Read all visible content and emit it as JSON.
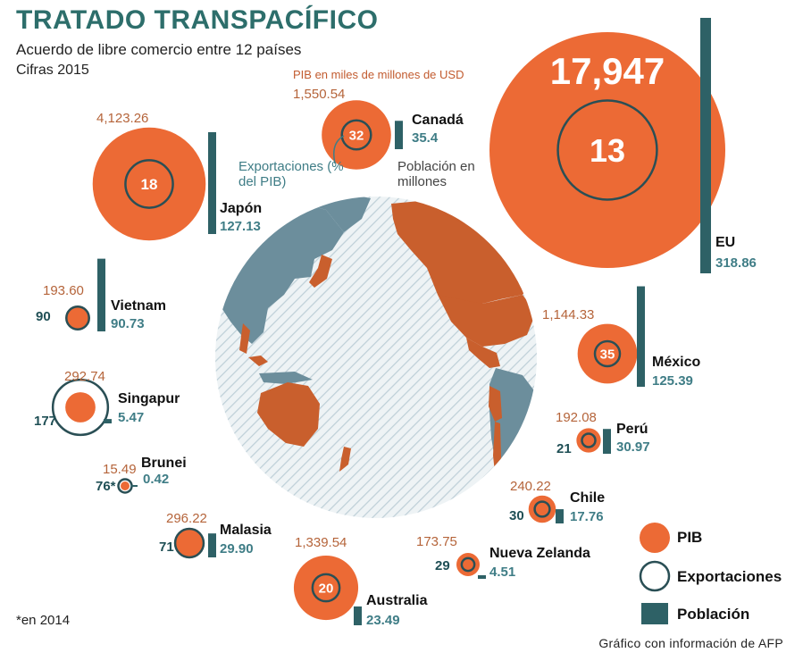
{
  "header": {
    "title": "TRATADO TRANSPACÍFICO",
    "subtitle": "Acuerdo de libre comercio entre 12 países",
    "year": "Cifras 2015"
  },
  "notes": {
    "gdp_unit": "PIB en miles de millones de USD",
    "exports_unit": "Exportaciones (% del PIB)",
    "population_unit": "Población en millones",
    "footnote": "*en 2014",
    "source": "Gráfico con información de AFP"
  },
  "legend": {
    "gdp": "PIB",
    "exports": "Exportaciones",
    "population": "Población"
  },
  "colors": {
    "gdp": "#ec6a35",
    "exports_ring": "#2a4f55",
    "population": "#2e6166",
    "globe_ocean": "#e8eef1",
    "globe_land_tpp": "#c95f2d",
    "globe_land_other": "#6c8e9c"
  },
  "chart_data": {
    "type": "bubble",
    "title": "TRATADO TRANSPACÍFICO",
    "subtitle": "Acuerdo de libre comercio entre 12 países",
    "series": [
      {
        "name": "PIB",
        "unit": "miles de millones de USD"
      },
      {
        "name": "Exportaciones",
        "unit": "% del PIB"
      },
      {
        "name": "Población",
        "unit": "millones"
      }
    ],
    "countries": [
      {
        "name": "EU",
        "gdp": 17947,
        "gdp_label": "17,947",
        "exports": 13,
        "exports_label": "13",
        "population": 318.86,
        "population_label": "318.86"
      },
      {
        "name": "Japón",
        "gdp": 4123.26,
        "gdp_label": "4,123.26",
        "exports": 18,
        "exports_label": "18",
        "population": 127.13,
        "population_label": "127.13"
      },
      {
        "name": "Canadá",
        "gdp": 1550.54,
        "gdp_label": "1,550.54",
        "exports": 32,
        "exports_label": "32",
        "population": 35.4,
        "population_label": "35.4"
      },
      {
        "name": "Vietnam",
        "gdp": 193.6,
        "gdp_label": "193.60",
        "exports": 90,
        "exports_label": "90",
        "population": 90.73,
        "population_label": "90.73"
      },
      {
        "name": "Singapur",
        "gdp": 292.74,
        "gdp_label": "292.74",
        "exports": 177,
        "exports_label": "177",
        "population": 5.47,
        "population_label": "5.47"
      },
      {
        "name": "Brunei",
        "gdp": 15.49,
        "gdp_label": "15.49",
        "exports": 76,
        "exports_label": "76*",
        "population": 0.42,
        "population_label": "0.42"
      },
      {
        "name": "Malasia",
        "gdp": 296.22,
        "gdp_label": "296.22",
        "exports": 71,
        "exports_label": "71",
        "population": 29.9,
        "population_label": "29.90"
      },
      {
        "name": "Australia",
        "gdp": 1339.54,
        "gdp_label": "1,339.54",
        "exports": 20,
        "exports_label": "20",
        "population": 23.49,
        "population_label": "23.49"
      },
      {
        "name": "México",
        "gdp": 1144.33,
        "gdp_label": "1,144.33",
        "exports": 35,
        "exports_label": "35",
        "population": 125.39,
        "population_label": "125.39"
      },
      {
        "name": "Perú",
        "gdp": 192.08,
        "gdp_label": "192.08",
        "exports": 21,
        "exports_label": "21",
        "population": 30.97,
        "population_label": "30.97"
      },
      {
        "name": "Chile",
        "gdp": 240.22,
        "gdp_label": "240.22",
        "exports": 30,
        "exports_label": "30",
        "population": 17.76,
        "population_label": "17.76"
      },
      {
        "name": "Nueva Zelanda",
        "gdp": 173.75,
        "gdp_label": "173.75",
        "exports": 29,
        "exports_label": "29",
        "population": 4.51,
        "population_label": "4.51"
      }
    ]
  }
}
